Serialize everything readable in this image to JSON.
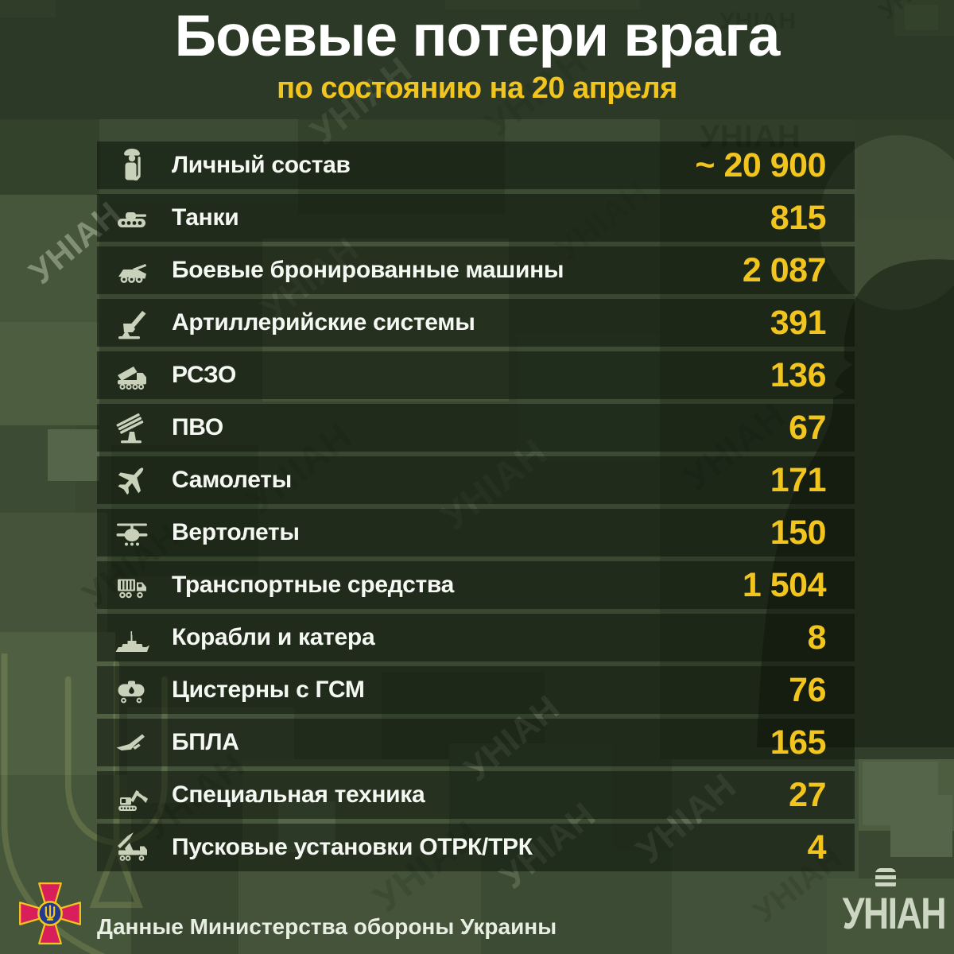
{
  "header": {
    "title": "Боевые потери врага",
    "subtitle": "по состоянию на 20 апреля"
  },
  "rows": [
    {
      "icon": "soldier",
      "label": "Личный состав",
      "value": "~ 20 900"
    },
    {
      "icon": "tank",
      "label": "Танки",
      "value": "815"
    },
    {
      "icon": "apc",
      "label": "Боевые бронированные машины",
      "value": "2 087"
    },
    {
      "icon": "artillery",
      "label": "Артиллерийские системы",
      "value": "391"
    },
    {
      "icon": "mlrs",
      "label": "РСЗО",
      "value": "136"
    },
    {
      "icon": "air-defense",
      "label": "ПВО",
      "value": "67"
    },
    {
      "icon": "jet",
      "label": "Самолеты",
      "value": "171"
    },
    {
      "icon": "helicopter",
      "label": "Вертолеты",
      "value": "150"
    },
    {
      "icon": "truck",
      "label": "Транспортные средства",
      "value": "1 504"
    },
    {
      "icon": "ship",
      "label": "Корабли и катера",
      "value": "8"
    },
    {
      "icon": "fuel-tank",
      "label": "Цистерны с ГСМ",
      "value": "76"
    },
    {
      "icon": "uav",
      "label": "БПЛА",
      "value": "165"
    },
    {
      "icon": "excavator",
      "label": "Специальная техника",
      "value": "27"
    },
    {
      "icon": "missile-launcher",
      "label": "Пусковые установки ОТРК/ТРК",
      "value": "4"
    }
  ],
  "footer": {
    "source": "Данные Министерства обороны Украины",
    "agency": "УНІАН"
  },
  "watermark_text": "УНІАН",
  "colors": {
    "accent_yellow": "#f2c41e",
    "background_green": "#3a4831",
    "top_band_green": "#2c3926",
    "row_background": "rgba(10,18,8,0.52)",
    "icon_color": "#c9d1ba",
    "title_white": "#ffffff",
    "emblem_crimson": "#d81e5b",
    "emblem_blue": "#223a8c"
  },
  "chart_data": {
    "type": "table",
    "title": "Боевые потери врага",
    "subtitle": "по состоянию на 20 апреля",
    "source": "Данные Министерства обороны Украины",
    "categories": [
      "Личный состав",
      "Танки",
      "Боевые бронированные машины",
      "Артиллерийские системы",
      "РСЗО",
      "ПВО",
      "Самолеты",
      "Вертолеты",
      "Транспортные средства",
      "Корабли и катера",
      "Цистерны с ГСМ",
      "БПЛА",
      "Специальная техника",
      "Пусковые установки ОТРК/ТРК"
    ],
    "values": [
      20900,
      815,
      2087,
      391,
      136,
      67,
      171,
      150,
      1504,
      8,
      76,
      165,
      27,
      4
    ],
    "value_labels": [
      "~ 20 900",
      "815",
      "2 087",
      "391",
      "136",
      "67",
      "171",
      "150",
      "1 504",
      "8",
      "76",
      "165",
      "27",
      "4"
    ],
    "notes": "value for Личный состав is approximate (~)"
  }
}
